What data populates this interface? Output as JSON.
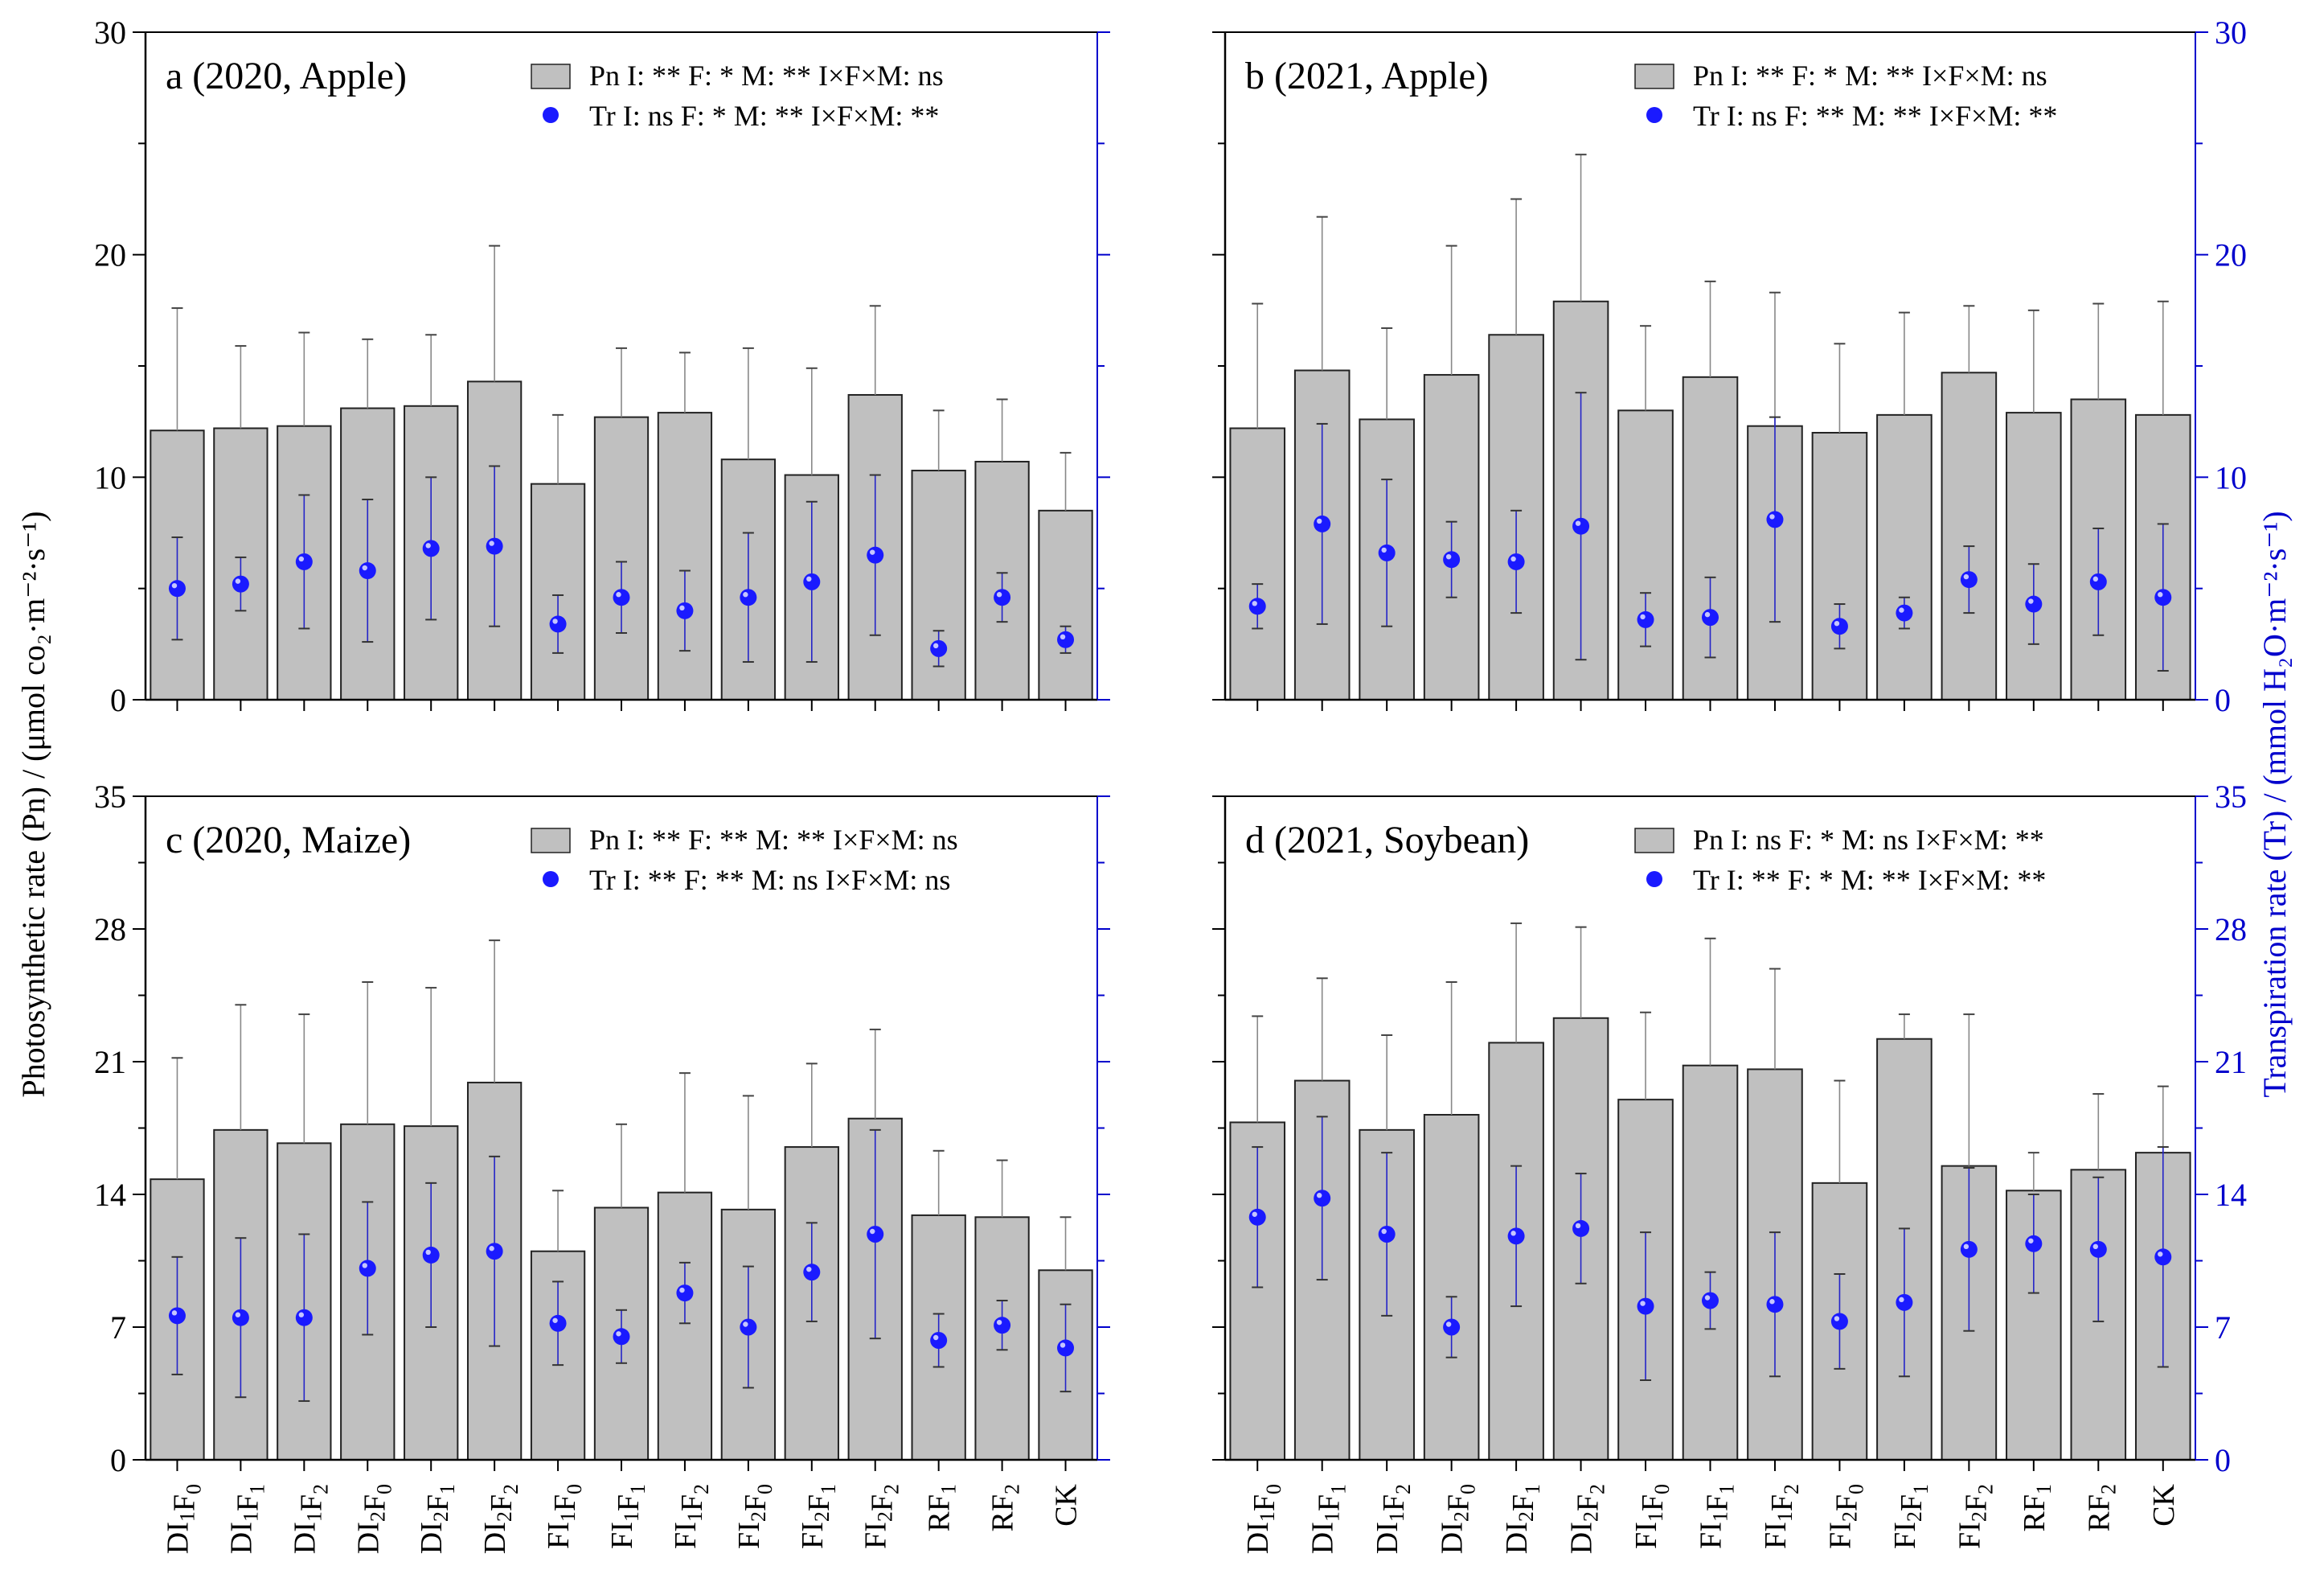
{
  "figure": {
    "left_axis_label": "Photosynthetic rate (Pn) / (μmol co₂·m⁻²·s⁻¹)",
    "right_axis_label": "Transpiration rate (Tr) / (mmol H₂O·m⁻²·s⁻¹)",
    "categories": [
      "DI1F0",
      "DI1F1",
      "DI1F2",
      "DI2F0",
      "DI2F1",
      "DI2F2",
      "FI1F0",
      "FI1F1",
      "FI1F2",
      "FI2F0",
      "FI2F1",
      "FI2F2",
      "RF1",
      "RF2",
      "CK"
    ],
    "category_labels": [
      {
        "main": "DI",
        "sub1": "1",
        "mid": "F",
        "sub2": "0"
      },
      {
        "main": "DI",
        "sub1": "1",
        "mid": "F",
        "sub2": "1"
      },
      {
        "main": "DI",
        "sub1": "1",
        "mid": "F",
        "sub2": "2"
      },
      {
        "main": "DI",
        "sub1": "2",
        "mid": "F",
        "sub2": "0"
      },
      {
        "main": "DI",
        "sub1": "2",
        "mid": "F",
        "sub2": "1"
      },
      {
        "main": "DI",
        "sub1": "2",
        "mid": "F",
        "sub2": "2"
      },
      {
        "main": "FI",
        "sub1": "1",
        "mid": "F",
        "sub2": "0"
      },
      {
        "main": "FI",
        "sub1": "1",
        "mid": "F",
        "sub2": "1"
      },
      {
        "main": "FI",
        "sub1": "1",
        "mid": "F",
        "sub2": "2"
      },
      {
        "main": "FI",
        "sub1": "2",
        "mid": "F",
        "sub2": "0"
      },
      {
        "main": "FI",
        "sub1": "2",
        "mid": "F",
        "sub2": "1"
      },
      {
        "main": "FI",
        "sub1": "2",
        "mid": "F",
        "sub2": "2"
      },
      {
        "main": "RF",
        "sub1": "1",
        "mid": "",
        "sub2": ""
      },
      {
        "main": "RF",
        "sub1": "2",
        "mid": "",
        "sub2": ""
      },
      {
        "main": "CK",
        "sub1": "",
        "mid": "",
        "sub2": ""
      }
    ],
    "colors": {
      "bar_fill": "#c0c0c0",
      "bar_edge": "#222222",
      "dot": "#1a1aff",
      "right_axis": "#0000cc",
      "pn_err": "#888888",
      "tr_err": "#2424c8"
    }
  },
  "chart_data": [
    {
      "type": "bar",
      "title": "a (2020, Apple)",
      "ylim": [
        0,
        30
      ],
      "ylim_right": [
        0,
        30
      ],
      "yticks": [
        0,
        10,
        20,
        30
      ],
      "yticks_right": [],
      "show_xlabels": false,
      "legend": {
        "pn_name": "Pn",
        "pn_stats": "I: **  F: *  M: **  I×F×M: ns",
        "tr_name": "Tr",
        "tr_stats": "I: ns  F: *  M: **  I×F×M: **"
      },
      "series": [
        {
          "name": "Pn",
          "values": [
            12.1,
            12.2,
            12.3,
            13.1,
            13.2,
            14.3,
            9.7,
            12.7,
            12.9,
            10.8,
            10.1,
            13.7,
            10.3,
            10.7,
            8.5
          ],
          "errors": [
            5.5,
            3.7,
            4.2,
            3.1,
            3.2,
            6.1,
            3.1,
            3.1,
            2.7,
            5.0,
            4.8,
            4.0,
            2.7,
            2.8,
            2.6
          ]
        },
        {
          "name": "Tr",
          "values": [
            5.0,
            5.2,
            6.2,
            5.8,
            6.8,
            6.9,
            3.4,
            4.6,
            4.0,
            4.6,
            5.3,
            6.5,
            2.3,
            4.6,
            2.7
          ],
          "errors": [
            2.3,
            1.2,
            3.0,
            3.2,
            3.2,
            3.6,
            1.3,
            1.6,
            1.8,
            2.9,
            3.6,
            3.6,
            0.8,
            1.1,
            0.6
          ]
        }
      ]
    },
    {
      "type": "bar",
      "title": "b (2021, Apple)",
      "ylim": [
        0,
        30
      ],
      "ylim_right": [
        0,
        30
      ],
      "yticks": [],
      "yticks_right": [
        0,
        10,
        20,
        30
      ],
      "show_xlabels": false,
      "legend": {
        "pn_name": "Pn",
        "pn_stats": "I: **  F: *   M: **  I×F×M: ns",
        "tr_name": "Tr",
        "tr_stats": "I: ns  F: ** M: **  I×F×M: **"
      },
      "series": [
        {
          "name": "Pn",
          "values": [
            12.2,
            14.8,
            12.6,
            14.6,
            16.4,
            17.9,
            13.0,
            14.5,
            12.3,
            12.0,
            12.8,
            14.7,
            12.9,
            13.5,
            12.8
          ],
          "errors": [
            5.6,
            6.9,
            4.1,
            5.8,
            6.1,
            6.6,
            3.8,
            4.3,
            6.0,
            4.0,
            4.6,
            3.0,
            4.6,
            4.3,
            5.1
          ]
        },
        {
          "name": "Tr",
          "values": [
            4.2,
            7.9,
            6.6,
            6.3,
            6.2,
            7.8,
            3.6,
            3.7,
            8.1,
            3.3,
            3.9,
            5.4,
            4.3,
            5.3,
            4.6
          ],
          "errors": [
            1.0,
            4.5,
            3.3,
            1.7,
            2.3,
            6.0,
            1.2,
            1.8,
            4.6,
            1.0,
            0.7,
            1.5,
            1.8,
            2.4,
            3.3
          ]
        }
      ]
    },
    {
      "type": "bar",
      "title": "c (2020, Maize)",
      "ylim": [
        0,
        35
      ],
      "ylim_right": [
        0,
        35
      ],
      "yticks": [
        0,
        7,
        14,
        21,
        28,
        35
      ],
      "yticks_right": [],
      "show_xlabels": true,
      "legend": {
        "pn_name": "Pn",
        "pn_stats": "I: ** F: **  M: **  I×F×M: ns",
        "tr_name": "Tr",
        "tr_stats": "I: ** F: **  M: ns  I×F×M: ns"
      },
      "series": [
        {
          "name": "Pn",
          "values": [
            14.8,
            17.4,
            16.7,
            17.7,
            17.6,
            19.9,
            11.0,
            13.3,
            14.1,
            13.2,
            16.5,
            18.0,
            12.9,
            12.8,
            10.0
          ],
          "errors": [
            6.4,
            6.6,
            6.8,
            7.5,
            7.3,
            7.5,
            3.2,
            4.4,
            6.3,
            6.0,
            4.4,
            4.7,
            3.4,
            3.0,
            2.8
          ]
        },
        {
          "name": "Tr",
          "values": [
            7.6,
            7.5,
            7.5,
            10.1,
            10.8,
            11.0,
            7.2,
            6.5,
            8.8,
            7.0,
            9.9,
            11.9,
            6.3,
            7.1,
            5.9
          ],
          "errors": [
            3.1,
            4.2,
            4.4,
            3.5,
            3.8,
            5.0,
            2.2,
            1.4,
            1.6,
            3.2,
            2.6,
            5.5,
            1.4,
            1.3,
            2.3
          ]
        }
      ]
    },
    {
      "type": "bar",
      "title": "d (2021, Soybean)",
      "ylim": [
        0,
        35
      ],
      "ylim_right": [
        0,
        35
      ],
      "yticks": [],
      "yticks_right": [
        0,
        7,
        14,
        21,
        28,
        35
      ],
      "show_xlabels": true,
      "legend": {
        "pn_name": "Pn",
        "pn_stats": "I: ns   F: *  M: ns  I×F×M: **",
        "tr_name": "Tr",
        "tr_stats": "I: **  F: *  M: **  I×F×M: **"
      },
      "series": [
        {
          "name": "Pn",
          "values": [
            17.8,
            20.0,
            17.4,
            18.2,
            22.0,
            23.3,
            19.0,
            20.8,
            20.6,
            14.6,
            22.2,
            15.5,
            14.2,
            15.3,
            16.2
          ],
          "errors": [
            5.6,
            5.4,
            5.0,
            7.0,
            6.3,
            4.8,
            4.6,
            6.7,
            5.3,
            5.4,
            1.3,
            8.0,
            2.0,
            4.0,
            3.5
          ]
        },
        {
          "name": "Tr",
          "values": [
            12.8,
            13.8,
            11.9,
            7.0,
            11.8,
            12.2,
            8.1,
            8.4,
            8.2,
            7.3,
            8.3,
            11.1,
            11.4,
            11.1,
            10.7
          ],
          "errors": [
            3.7,
            4.3,
            4.3,
            1.6,
            3.7,
            2.9,
            3.9,
            1.5,
            3.8,
            2.5,
            3.9,
            4.3,
            2.6,
            3.8,
            5.8
          ]
        }
      ]
    }
  ]
}
